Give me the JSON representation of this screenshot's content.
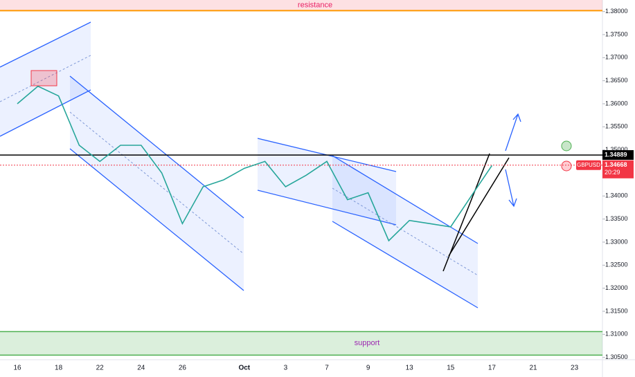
{
  "chart_data": {
    "type": "line",
    "categories": [
      "16",
      null,
      "18",
      null,
      "22",
      null,
      "24",
      null,
      "26",
      null,
      null,
      "Oct",
      null,
      "3",
      null,
      "7",
      null,
      "9",
      null,
      "13",
      null,
      "15",
      null,
      "17",
      null,
      "21",
      null,
      "23"
    ],
    "series": [
      {
        "name": "GBPUSD",
        "color": "#26a69a",
        "values": [
          1.36,
          1.3638,
          1.3617,
          1.351,
          1.3475,
          1.351,
          1.351,
          1.345,
          1.334,
          1.342,
          1.3435,
          1.346,
          1.3475,
          1.342,
          1.3445,
          1.3475,
          1.3392,
          1.3407,
          1.3303,
          1.3347,
          1.334,
          1.3333,
          1.34,
          1.3466,
          null,
          null,
          null,
          null
        ]
      }
    ],
    "ylim": [
      1.3045,
      1.3825
    ],
    "yticks": [
      {
        "value": 1.38,
        "label": "1.38000"
      },
      {
        "value": 1.375,
        "label": "1.37500"
      },
      {
        "value": 1.37,
        "label": "1.37000"
      },
      {
        "value": 1.365,
        "label": "1.36500"
      },
      {
        "value": 1.36,
        "label": "1.36000"
      },
      {
        "value": 1.355,
        "label": "1.35500"
      },
      {
        "value": 1.35,
        "label": "1.35000"
      },
      {
        "value": 1.345,
        "label": "1.34500"
      },
      {
        "value": 1.34,
        "label": "1.34000"
      },
      {
        "value": 1.335,
        "label": "1.33500"
      },
      {
        "value": 1.33,
        "label": "1.33000"
      },
      {
        "value": 1.325,
        "label": "1.32500"
      },
      {
        "value": 1.32,
        "label": "1.32000"
      },
      {
        "value": 1.315,
        "label": "1.31500"
      },
      {
        "value": 1.31,
        "label": "1.31000"
      },
      {
        "value": 1.305,
        "label": "1.30500"
      }
    ],
    "resistance": {
      "label": "resistance",
      "zone": [
        1.3802,
        1.3825
      ]
    },
    "support": {
      "label": "support",
      "zone": [
        1.3055,
        1.3106
      ]
    },
    "level": {
      "value": 1.34889,
      "label": "1.34889"
    },
    "last_price": {
      "symbol": "GBPUSD",
      "value": 1.34668,
      "label": "1.34668",
      "countdown": "20:29"
    }
  }
}
